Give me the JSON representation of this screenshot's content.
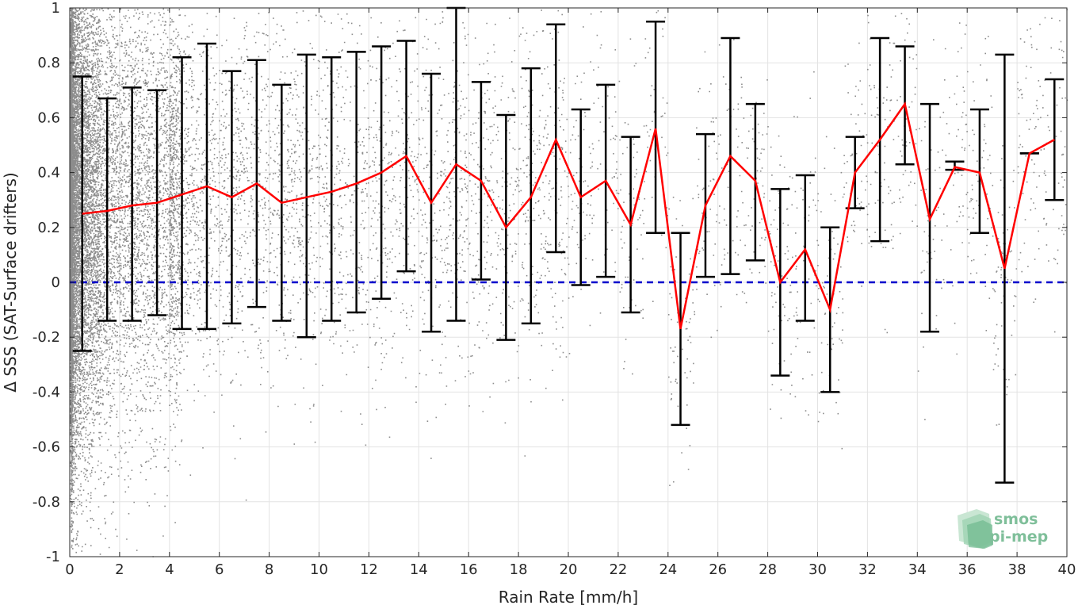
{
  "chart_data": {
    "type": "line",
    "xlabel": "Rain Rate [mm/h]",
    "ylabel": "Δ SSS (SAT-Surface drifters)",
    "xlim": [
      0,
      40
    ],
    "ylim": [
      -1,
      1
    ],
    "xticks": [
      0,
      2,
      4,
      6,
      8,
      10,
      12,
      14,
      16,
      18,
      20,
      22,
      24,
      26,
      28,
      30,
      32,
      34,
      36,
      38,
      40
    ],
    "xtick_labels": [
      "0",
      "2",
      "4",
      "6",
      "8",
      "10",
      "12",
      "14",
      "16",
      "18",
      "20",
      "22",
      "24",
      "26",
      "28",
      "30",
      "32",
      "34",
      "36",
      "38",
      "40"
    ],
    "yticks": [
      -1,
      -0.8,
      -0.6,
      -0.4,
      -0.2,
      0,
      0.2,
      0.4,
      0.6,
      0.8,
      1
    ],
    "ytick_labels": [
      "-1",
      "-0.8",
      "-0.6",
      "-0.4",
      "-0.2",
      "0",
      "0.2",
      "0.4",
      "0.6",
      "0.8",
      "1"
    ],
    "grid": true,
    "series": [
      {
        "kind": "mean-with-error-bars",
        "color": "#ff0000",
        "errorbar_color": "#000000",
        "x": [
          0.5,
          1.5,
          2.5,
          3.5,
          4.5,
          5.5,
          6.5,
          7.5,
          8.5,
          9.5,
          10.5,
          11.5,
          12.5,
          13.5,
          14.5,
          15.5,
          16.5,
          17.5,
          18.5,
          19.5,
          20.5,
          21.5,
          22.5,
          23.5,
          24.5,
          25.5,
          26.5,
          27.5,
          28.5,
          29.5,
          30.5,
          31.5,
          32.5,
          33.5,
          34.5,
          35.5,
          36.5,
          37.5,
          38.5,
          39.5
        ],
        "y": [
          0.25,
          0.26,
          0.28,
          0.29,
          0.32,
          0.35,
          0.31,
          0.36,
          0.29,
          0.31,
          0.33,
          0.36,
          0.4,
          0.46,
          0.29,
          0.43,
          0.37,
          0.2,
          0.31,
          0.52,
          0.31,
          0.37,
          0.21,
          0.56,
          -0.17,
          0.28,
          0.46,
          0.37,
          0.0,
          0.12,
          -0.1,
          0.4,
          0.52,
          0.65,
          0.23,
          0.42,
          0.4,
          0.05,
          0.47,
          0.52
        ],
        "lower": [
          -0.25,
          -0.14,
          -0.14,
          -0.12,
          -0.17,
          -0.17,
          -0.15,
          -0.09,
          -0.14,
          -0.2,
          -0.14,
          -0.11,
          -0.06,
          0.04,
          -0.18,
          -0.14,
          0.01,
          -0.21,
          -0.15,
          0.11,
          -0.01,
          0.02,
          -0.11,
          0.18,
          -0.52,
          0.02,
          0.03,
          0.08,
          -0.34,
          -0.14,
          -0.4,
          0.27,
          0.15,
          0.43,
          -0.18,
          0.41,
          0.18,
          -0.73,
          0.47,
          0.3
        ],
        "upper": [
          0.75,
          0.67,
          0.71,
          0.7,
          0.82,
          0.87,
          0.77,
          0.81,
          0.72,
          0.83,
          0.82,
          0.84,
          0.86,
          0.88,
          0.76,
          1.0,
          0.73,
          0.61,
          0.78,
          0.94,
          0.63,
          0.72,
          0.53,
          0.95,
          0.18,
          0.54,
          0.89,
          0.65,
          0.34,
          0.39,
          0.2,
          0.53,
          0.89,
          0.86,
          0.65,
          0.44,
          0.63,
          0.83,
          0.47,
          0.74
        ]
      },
      {
        "kind": "reference-line",
        "y": 0,
        "color": "#0000cc",
        "dash": "dashed"
      },
      {
        "kind": "scatter",
        "color": "#8c8c8c"
      }
    ]
  },
  "logo": {
    "line1": "smos",
    "line2": "pi-mep",
    "color": "#7fbf9a"
  }
}
